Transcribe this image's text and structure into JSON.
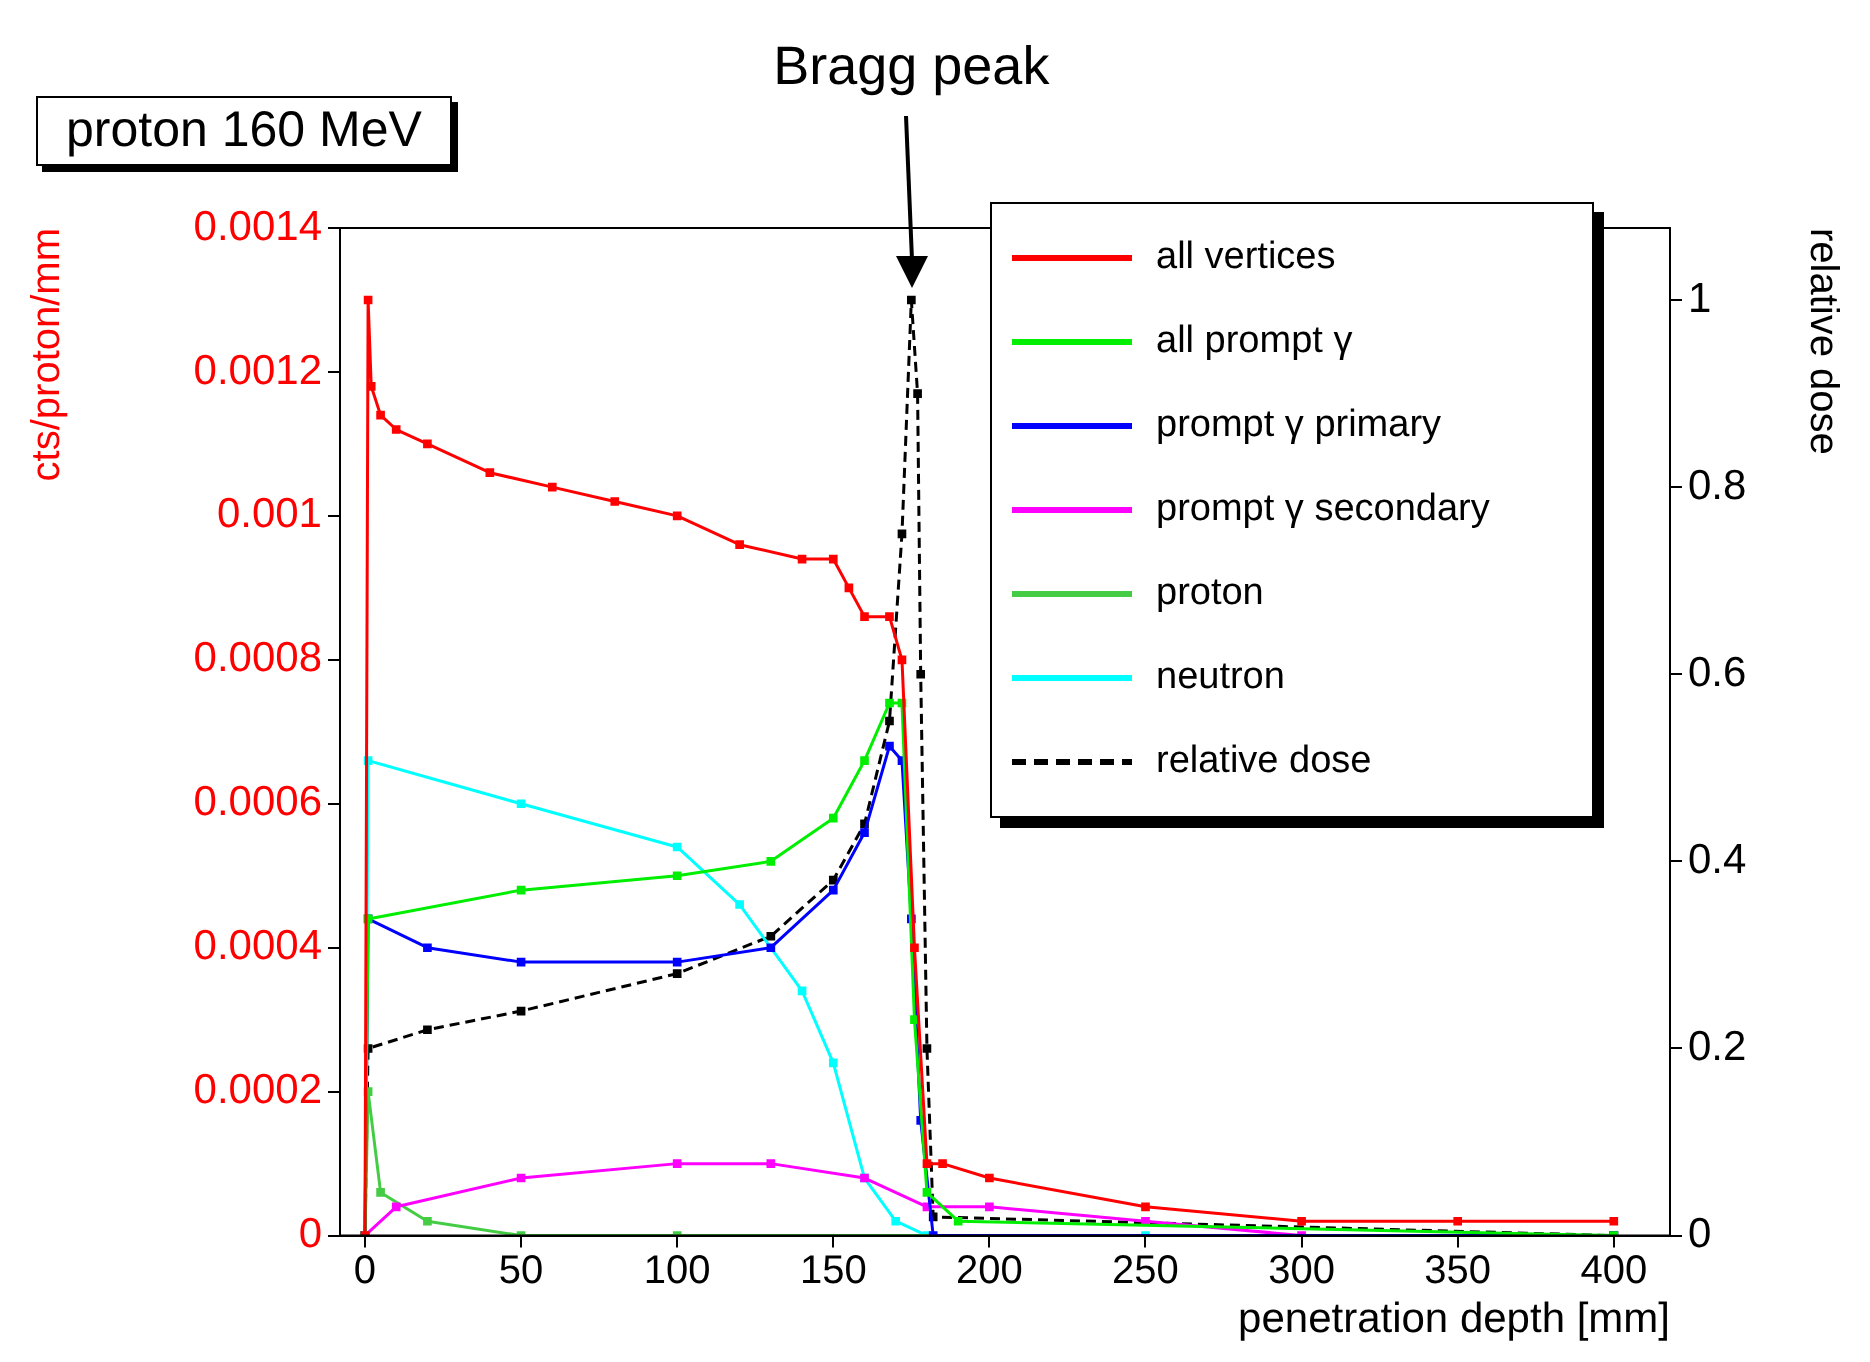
{
  "chart_data": {
    "type": "line",
    "title": "proton 160 MeV",
    "xlabel": "penetration depth [mm]",
    "ylabel": "cts/proton/mm",
    "y2label": "relative dose",
    "annotations": [
      {
        "text": "Bragg peak",
        "x": 175
      }
    ],
    "xlim": [
      -8,
      418
    ],
    "xticks": [
      0,
      50,
      100,
      150,
      200,
      250,
      300,
      350,
      400
    ],
    "ylim": [
      0,
      0.0014
    ],
    "yticks": [
      0,
      0.0002,
      0.0004,
      0.0006,
      0.0008,
      0.001,
      0.0012,
      0.0014
    ],
    "y2lim": [
      0,
      1.077
    ],
    "y2ticks": [
      0,
      0.2,
      0.4,
      0.6,
      0.8,
      1
    ],
    "grid": false,
    "legend": "top right",
    "marker": "square",
    "series": [
      {
        "name": "all vertices",
        "color": "#ff0000",
        "x": [
          0,
          1,
          2,
          5,
          10,
          20,
          40,
          60,
          80,
          100,
          120,
          140,
          150,
          155,
          160,
          168,
          172,
          176,
          180,
          185,
          200,
          250,
          300,
          350,
          400
        ],
        "values": [
          0,
          0.0013,
          0.00118,
          0.00114,
          0.00112,
          0.0011,
          0.00106,
          0.00104,
          0.00102,
          0.001,
          0.00096,
          0.00094,
          0.00094,
          0.0009,
          0.00086,
          0.00086,
          0.0008,
          0.0004,
          0.0001,
          0.0001,
          8e-05,
          4e-05,
          2e-05,
          2e-05,
          2e-05
        ]
      },
      {
        "name": "all prompt γ",
        "color": "#00ee00",
        "x": [
          0,
          1,
          50,
          100,
          130,
          150,
          160,
          168,
          172,
          176,
          180,
          190,
          400
        ],
        "values": [
          0,
          0.00044,
          0.00048,
          0.0005,
          0.00052,
          0.00058,
          0.00066,
          0.00074,
          0.00074,
          0.0003,
          6e-05,
          2e-05,
          0
        ]
      },
      {
        "name": "prompt γ primary",
        "color": "#0000ff",
        "x": [
          0,
          1,
          20,
          50,
          100,
          130,
          150,
          160,
          168,
          172,
          175,
          178,
          182,
          400
        ],
        "values": [
          0,
          0.00044,
          0.0004,
          0.00038,
          0.00038,
          0.0004,
          0.00048,
          0.00056,
          0.00068,
          0.00066,
          0.00044,
          0.00016,
          0,
          0
        ]
      },
      {
        "name": "prompt γ secondary",
        "color": "#ff00ff",
        "x": [
          0,
          10,
          50,
          100,
          130,
          160,
          180,
          200,
          250,
          300,
          400
        ],
        "values": [
          0,
          4e-05,
          8e-05,
          0.0001,
          0.0001,
          8e-05,
          4e-05,
          4e-05,
          2e-05,
          0,
          0
        ]
      },
      {
        "name": "proton",
        "color": "#44cc44",
        "x": [
          0,
          1,
          5,
          20,
          50,
          100,
          400
        ],
        "values": [
          0,
          0.0002,
          6e-05,
          2e-05,
          0,
          0,
          0
        ]
      },
      {
        "name": "neutron",
        "color": "#00ffff",
        "x": [
          0,
          1,
          50,
          100,
          120,
          140,
          150,
          160,
          170,
          180,
          250,
          400
        ],
        "values": [
          0,
          0.00066,
          0.0006,
          0.00054,
          0.00046,
          0.00034,
          0.00024,
          8e-05,
          2e-05,
          0,
          0,
          0
        ]
      },
      {
        "name": "relative dose",
        "color": "#000000",
        "axis": "y2",
        "line_style": "dashed",
        "x": [
          0,
          1,
          20,
          50,
          100,
          130,
          150,
          160,
          168,
          172,
          175,
          177,
          178,
          180,
          182,
          400
        ],
        "values": [
          0,
          0.2,
          0.22,
          0.24,
          0.28,
          0.32,
          0.38,
          0.44,
          0.55,
          0.75,
          1.0,
          0.9,
          0.6,
          0.2,
          0.02,
          0
        ]
      }
    ]
  }
}
